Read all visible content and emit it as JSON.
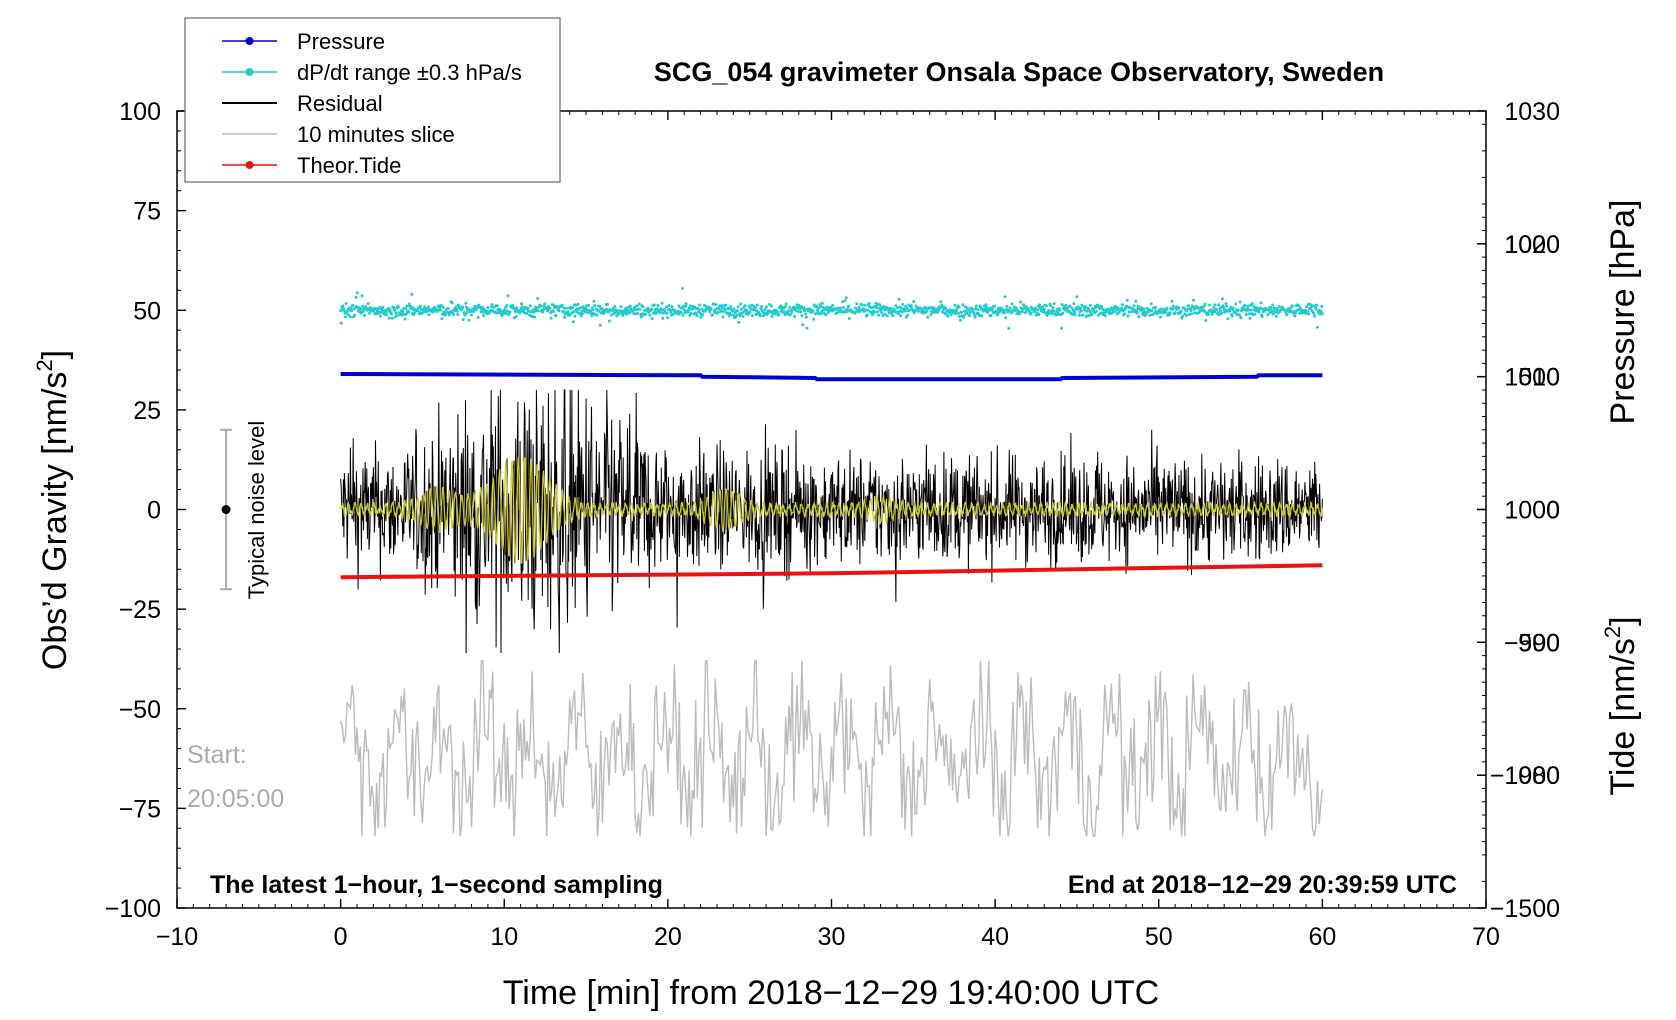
{
  "chart_data": {
    "type": "line",
    "title": "SCG_054 gravimeter Onsala Space Observatory, Sweden",
    "xlabel": "Time [min] from 2018−12−29 19:40:00 UTC",
    "ylabel_left": "Obs’d Gravity [nm/s",
    "ylabel_left_sup": "2",
    "ylabel_left_close": "]",
    "ylabel_right_pressure": "Pressure [hPa]",
    "ylabel_right_tide": "Tide [nm/s",
    "ylabel_right_tide_sup": "2",
    "ylabel_right_tide_close": "]",
    "xlim": [
      -10,
      70
    ],
    "ylim_left": [
      -100,
      100
    ],
    "pressure_axis": {
      "min": 970,
      "max": 1030,
      "ticks": [
        "980",
        "990",
        "1000",
        "1010",
        "1020",
        "1030"
      ],
      "tick_values": [
        980,
        990,
        1000,
        1010,
        1020,
        1030
      ]
    },
    "tide_axis": {
      "min": -1500,
      "max": 1500,
      "ticks": [
        "−1500",
        "−1000",
        "−500",
        "0",
        "500",
        "1000"
      ],
      "tick_values": [
        -1500,
        -1000,
        -500,
        0,
        500,
        1000
      ]
    },
    "x_ticks": [
      "−10",
      "0",
      "10",
      "20",
      "30",
      "40",
      "50",
      "60",
      "70"
    ],
    "x_tick_values": [
      -10,
      0,
      10,
      20,
      30,
      40,
      50,
      60,
      70
    ],
    "y_ticks": [
      "−100",
      "−75",
      "−50",
      "−25",
      "0",
      "25",
      "50",
      "75",
      "100"
    ],
    "y_tick_values": [
      -100,
      -75,
      -50,
      -25,
      0,
      25,
      50,
      75,
      100
    ],
    "legend": [
      {
        "label": "Pressure",
        "color": "#0000dd",
        "marker": true
      },
      {
        "label": "dP/dt range ±0.3 hPa/s",
        "color": "#22cccc",
        "marker": true
      },
      {
        "label": "Residual",
        "color": "#000000",
        "marker": false
      },
      {
        "label": "10 minutes slice",
        "color": "#bbbbbb",
        "marker": false
      },
      {
        "label": "Theor.Tide",
        "color": "#ee1111",
        "marker": true
      }
    ],
    "series": [
      {
        "name": "Pressure",
        "axis": "pressure",
        "x": [
          0,
          22,
          22.1,
          29,
          29.1,
          44,
          44.1,
          56,
          56.1,
          60
        ],
        "values": [
          1010.2,
          1010.1,
          1010.0,
          1009.9,
          1009.8,
          1009.8,
          1009.9,
          1010.0,
          1010.1,
          1010.1
        ]
      },
      {
        "name": "dP/dt range ±0.3 hPa/s",
        "axis": "gravity",
        "baseline": 50,
        "amplitude": 3.5
      },
      {
        "name": "Residual",
        "axis": "gravity",
        "baseline": 0,
        "amplitude_start": 14,
        "amplitude_peak": 30,
        "amplitude_end": 12
      },
      {
        "name": "10 minutes slice",
        "axis": "gravity",
        "baseline": -62,
        "amplitude": 20
      },
      {
        "name": "Theor.Tide",
        "axis": "tide",
        "x": [
          0,
          10,
          20,
          30,
          40,
          50,
          60
        ],
        "values": [
          -255,
          -250,
          -245,
          -240,
          -230,
          -220,
          -210
        ]
      }
    ],
    "noise_marker": {
      "label": "Typical noise level",
      "x": -7,
      "center": 0,
      "low": -20,
      "high": 20
    },
    "start_label": "Start:",
    "start_time": "20:05:00",
    "footer_left": "The latest 1−hour, 1−second sampling",
    "footer_right": "End at 2018−12−29 20:39:59 UTC"
  },
  "colors": {
    "pressure": "#0000dd",
    "dpdt": "#22cccc",
    "residual": "#000000",
    "smooth": "#cccc22",
    "slice": "#bbbbbb",
    "tide": "#ee1111"
  }
}
